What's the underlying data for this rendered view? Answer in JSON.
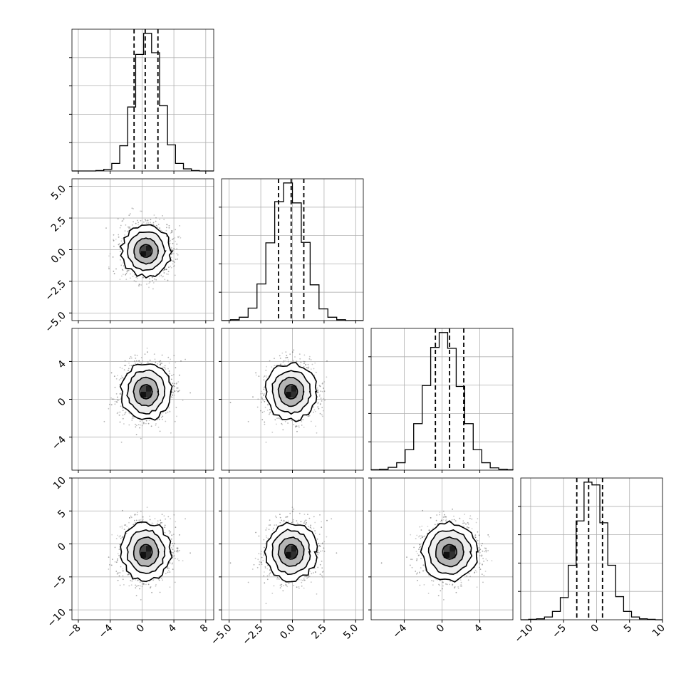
{
  "chart_data": {
    "type": "corner",
    "n_params": 4,
    "grid": true,
    "params": [
      {
        "mean": 0.5,
        "std": 1.55,
        "quantiles": [
          -1.0,
          0.4,
          2.0
        ],
        "range": [
          -8.8,
          9.0
        ],
        "ticks": [
          -8,
          -4,
          0,
          4,
          8
        ],
        "tick_labels": [
          "−8",
          "−4",
          "0",
          "4",
          "8"
        ]
      },
      {
        "mean": -0.1,
        "std": 1.0,
        "quantiles": [
          -1.1,
          -0.1,
          0.9
        ],
        "range": [
          -5.6,
          5.6
        ],
        "ticks": [
          -5.0,
          -2.5,
          0.0,
          2.5,
          5.0
        ],
        "tick_labels": [
          "−5.0",
          "−2.5",
          "0.0",
          "2.5",
          "5.0"
        ]
      },
      {
        "mean": 0.8,
        "std": 1.5,
        "quantiles": [
          -0.7,
          0.8,
          2.3
        ],
        "range": [
          -7.5,
          7.5
        ],
        "ticks": [
          -4,
          0,
          4
        ],
        "tick_labels": [
          "−4",
          "0",
          "4"
        ]
      },
      {
        "mean": -1.2,
        "std": 2.2,
        "quantiles": [
          -3.0,
          -1.2,
          0.9
        ],
        "range": [
          -11.5,
          10.0
        ],
        "ticks": [
          -10,
          -5,
          0,
          5,
          10
        ],
        "tick_labels": [
          "−10",
          "−5",
          "0",
          "5",
          "10"
        ]
      }
    ],
    "histograms": [
      {
        "param": 0,
        "bin_edges": [
          -8.8,
          -7.8,
          -6.8,
          -5.8,
          -4.8,
          -3.8,
          -2.8,
          -1.8,
          -0.8,
          0.2,
          1.2,
          2.2,
          3.2,
          4.2,
          5.2,
          6.2,
          7.2,
          8.2,
          9.0
        ],
        "counts": [
          0,
          0,
          0,
          1,
          4,
          18,
          60,
          152,
          277,
          327,
          281,
          155,
          62,
          18,
          5,
          1,
          0,
          0
        ]
      },
      {
        "param": 1,
        "bin_edges": [
          -5.6,
          -4.9,
          -4.2,
          -3.5,
          -2.8,
          -2.1,
          -1.4,
          -0.7,
          0.0,
          0.7,
          1.4,
          2.1,
          2.8,
          3.5,
          4.2,
          4.9,
          5.6
        ],
        "counts": [
          0,
          2,
          8,
          30,
          88,
          187,
          286,
          331,
          283,
          188,
          86,
          28,
          8,
          2,
          0,
          0
        ]
      },
      {
        "param": 2,
        "bin_edges": [
          -7.5,
          -6.6,
          -5.7,
          -4.8,
          -3.9,
          -3.0,
          -2.1,
          -1.2,
          -0.3,
          0.6,
          1.5,
          2.4,
          3.3,
          4.2,
          5.1,
          6.0,
          6.9,
          7.5
        ],
        "counts": [
          1,
          2,
          6,
          16,
          44,
          100,
          182,
          264,
          296,
          262,
          180,
          100,
          44,
          16,
          5,
          2,
          1
        ]
      },
      {
        "param": 3,
        "bin_edges": [
          -11.5,
          -10.3,
          -9.1,
          -7.9,
          -6.7,
          -5.5,
          -4.3,
          -3.1,
          -1.9,
          -0.7,
          0.5,
          1.7,
          2.9,
          4.1,
          5.3,
          6.5,
          7.7,
          8.9,
          10.0
        ],
        "counts": [
          0,
          1,
          2,
          6,
          18,
          48,
          118,
          214,
          298,
          292,
          210,
          118,
          50,
          18,
          6,
          2,
          1,
          0
        ]
      }
    ],
    "scatter_panels": [
      {
        "x_param": 0,
        "y_param": 1
      },
      {
        "x_param": 0,
        "y_param": 2
      },
      {
        "x_param": 1,
        "y_param": 2
      },
      {
        "x_param": 0,
        "y_param": 3
      },
      {
        "x_param": 1,
        "y_param": 3
      },
      {
        "x_param": 2,
        "y_param": 3
      }
    ],
    "contour_sigma_levels": [
      0.5,
      1.0,
      1.5,
      2.0
    ],
    "density_cells": {
      "filled_levels": [
        0.5,
        1.0
      ],
      "colors": [
        "#111111",
        "#8a8a8a"
      ]
    }
  }
}
